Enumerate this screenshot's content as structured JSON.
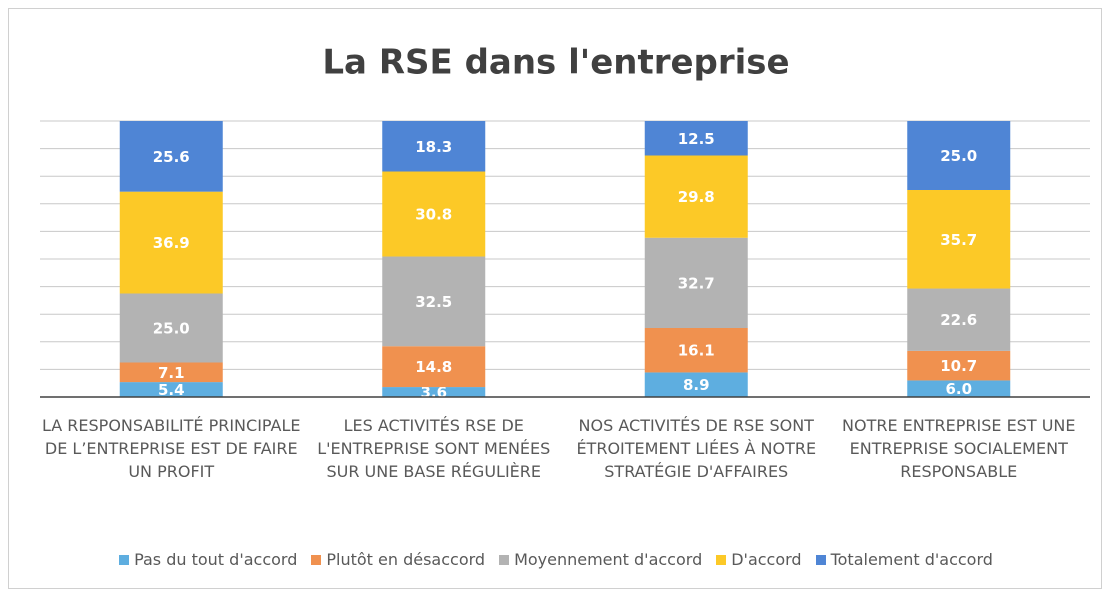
{
  "chart_data": {
    "type": "stacked_bar",
    "title": "La RSE dans l'entreprise",
    "categories": [
      "LA RESPONSABILITÉ PRINCIPALE DE L’ENTREPRISE EST DE FAIRE UN PROFIT",
      "LES ACTIVITÉS RSE DE L'ENTREPRISE SONT MENÉES SUR UNE BASE RÉGULIÈRE",
      "NOS ACTIVITÉS DE RSE SONT ÉTROITEMENT LIÉES À NOTRE STRATÉGIE D'AFFAIRES",
      "NOTRE ENTREPRISE EST UNE ENTREPRISE SOCIALEMENT RESPONSABLE"
    ],
    "series": [
      {
        "name": "Pas du tout d'accord",
        "color": "#5eaee0",
        "values": [
          5.4,
          3.6,
          8.9,
          6
        ],
        "value_labels": [
          "5.4",
          "3.6",
          "8.9",
          "6.0"
        ]
      },
      {
        "name": "Plutôt en désaccord",
        "color": "#f0914f",
        "values": [
          7.1,
          14.8,
          16.1,
          10.7
        ],
        "value_labels": [
          "7.1",
          "14.8",
          "16.1",
          "10.7"
        ]
      },
      {
        "name": "Moyennement d'accord",
        "color": "#b3b3b3",
        "values": [
          25,
          32.5,
          32.7,
          22.6
        ],
        "value_labels": [
          "25.0",
          "32.5",
          "32.7",
          "22.6"
        ]
      },
      {
        "name": "D'accord",
        "color": "#fcc927",
        "values": [
          36.9,
          30.8,
          29.8,
          35.7
        ],
        "value_labels": [
          "36.9",
          "30.8",
          "29.8",
          "35.7"
        ]
      },
      {
        "name": "Totalement d'accord",
        "color": "#4f85d5",
        "values": [
          25.6,
          18.3,
          12.5,
          25
        ],
        "value_labels": [
          "25.6",
          "18.3",
          "12.5",
          "25.0"
        ]
      }
    ],
    "ylim": [
      0,
      100
    ],
    "yticks": [
      0,
      10,
      20,
      30,
      40,
      50,
      60,
      70,
      80,
      90,
      100
    ],
    "grid": true
  }
}
